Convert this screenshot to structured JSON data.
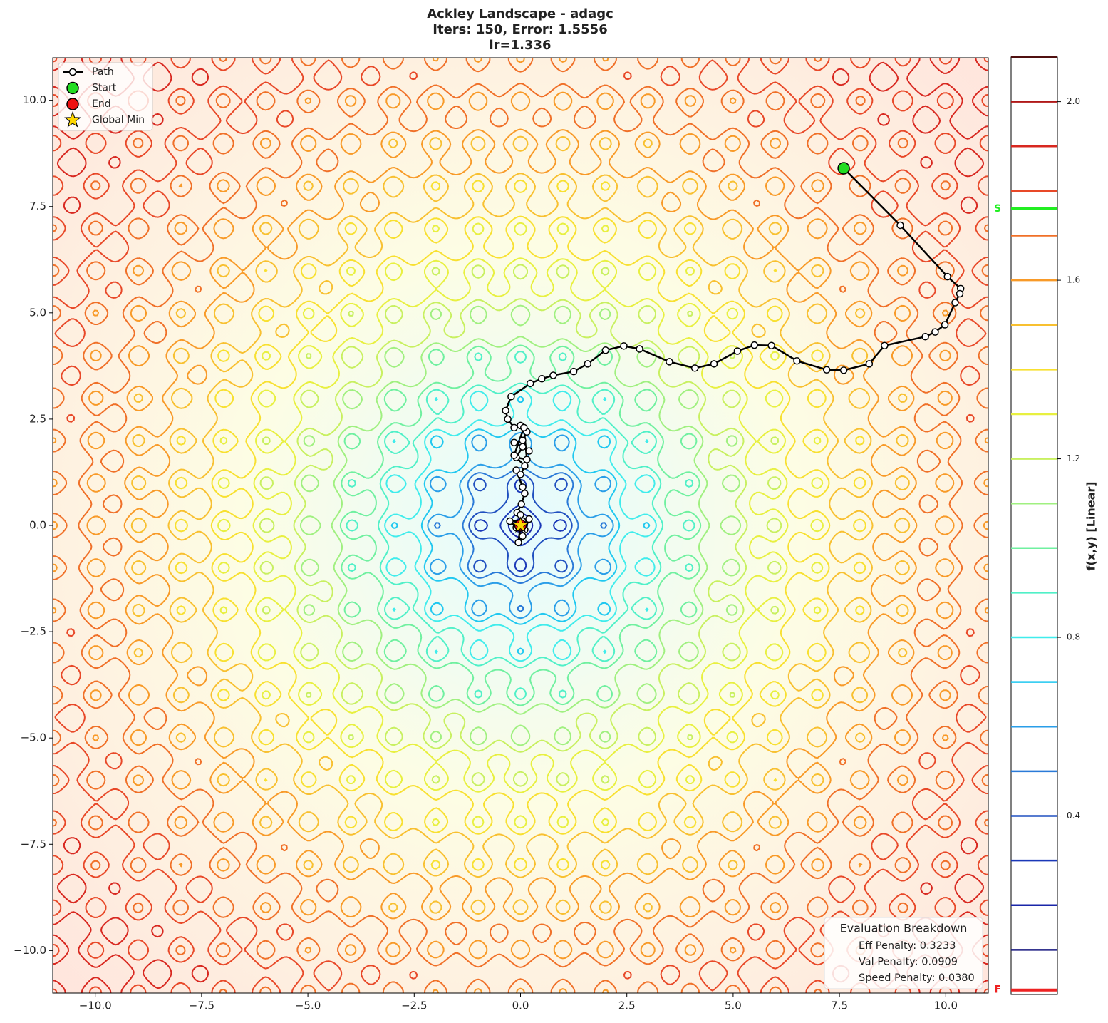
{
  "chart_data": {
    "type": "contour",
    "title": [
      "Ackley Landscape - adagc",
      "Iters: 150, Error: 1.5556",
      "lr=1.336"
    ],
    "xlim": [
      -11,
      11
    ],
    "ylim": [
      -11,
      11
    ],
    "xticks": [
      {
        "value": -10,
        "label": "−10.0"
      },
      {
        "value": -7.5,
        "label": "−7.5"
      },
      {
        "value": -5,
        "label": "−5.0"
      },
      {
        "value": -2.5,
        "label": "−2.5"
      },
      {
        "value": 0,
        "label": "0.0"
      },
      {
        "value": 2.5,
        "label": "2.5"
      },
      {
        "value": 5,
        "label": "5.0"
      },
      {
        "value": 7.5,
        "label": "7.5"
      },
      {
        "value": 10,
        "label": "10.0"
      }
    ],
    "yticks": [
      {
        "value": -10,
        "label": "−10.0"
      },
      {
        "value": -7.5,
        "label": "−7.5"
      },
      {
        "value": -5,
        "label": "−5.0"
      },
      {
        "value": -2.5,
        "label": "−2.5"
      },
      {
        "value": 0,
        "label": "0.0"
      },
      {
        "value": 2.5,
        "label": "2.5"
      },
      {
        "value": 5,
        "label": "5.0"
      },
      {
        "value": 7.5,
        "label": "7.5"
      },
      {
        "value": 10,
        "label": "10.0"
      }
    ],
    "legend": "upper left",
    "path": {
      "name": "Path",
      "color": "#000000",
      "x": [
        7.6,
        8.93,
        10.04,
        10.35,
        10.33,
        10.22,
        9.98,
        9.75,
        9.52,
        8.56,
        8.2,
        7.6,
        7.2,
        6.5,
        5.9,
        5.5,
        5.1,
        4.55,
        4.1,
        3.5,
        2.8,
        2.43,
        2.0,
        1.58,
        1.25,
        0.77,
        0.5,
        0.23,
        -0.22,
        -0.35,
        -0.3,
        -0.15,
        0.0,
        0.15,
        0.05,
        -0.15,
        0.2,
        0.05,
        -0.1,
        0.15,
        0.08,
        -0.15,
        0.1,
        0.0,
        -0.1,
        0.05,
        0.1,
        0.02,
        -0.08,
        0.0,
        0.05,
        -0.25,
        -0.1,
        0.1,
        0.2,
        0.05,
        -0.05,
        0.0,
        0.0
      ],
      "y": [
        8.4,
        7.06,
        5.85,
        5.57,
        5.45,
        5.24,
        4.72,
        4.55,
        4.44,
        4.23,
        3.8,
        3.65,
        3.66,
        3.87,
        4.23,
        4.24,
        4.1,
        3.8,
        3.7,
        3.85,
        4.15,
        4.22,
        4.12,
        3.8,
        3.62,
        3.53,
        3.45,
        3.34,
        3.03,
        2.7,
        2.5,
        2.3,
        2.35,
        2.2,
        2.0,
        1.95,
        1.75,
        1.85,
        1.6,
        1.55,
        2.3,
        1.65,
        1.4,
        1.2,
        1.3,
        0.9,
        0.75,
        0.5,
        0.3,
        0.25,
        0.1,
        0.1,
        -0.05,
        -0.1,
        0.15,
        -0.25,
        -0.4,
        0.0,
        0.0
      ]
    },
    "start": {
      "name": "Start",
      "x": 7.6,
      "y": 8.4,
      "color": "#22dd22"
    },
    "end": {
      "name": "End",
      "x": 0.0,
      "y": 0.0,
      "color": "#ee1111"
    },
    "global_min": {
      "name": "Global Min",
      "x": 0,
      "y": 0,
      "color": "#ffd700"
    },
    "colorbar": {
      "label": "f(x,y) [Linear]",
      "lim": [
        0,
        2.1
      ],
      "ticks": [
        0.4,
        0.8,
        1.2,
        1.6,
        {
          "value": 2,
          "label": "2.0"
        }
      ],
      "levels": [
        0.1,
        0.2,
        0.3,
        0.4,
        0.5,
        0.6,
        0.7,
        0.8,
        0.9,
        1.0,
        1.1,
        1.2,
        1.3,
        1.4,
        1.5,
        1.6,
        1.7,
        1.8,
        1.9,
        2.0,
        2.1
      ],
      "colors": [
        "#1a1a80",
        "#1a26a8",
        "#1a38b8",
        "#2050c0",
        "#2a7ad8",
        "#2a9ee8",
        "#20c8f0",
        "#40ecec",
        "#50f0c8",
        "#70f0a0",
        "#a0f080",
        "#c8f060",
        "#e8f040",
        "#f8e030",
        "#f8c030",
        "#f89a28",
        "#f07028",
        "#e84828",
        "#d82820",
        "#b01818",
        "#501010"
      ],
      "markers": [
        {
          "label": "S",
          "value": 1.76,
          "color": "#22ee22"
        },
        {
          "label": "F",
          "value": 0.01,
          "color": "#ee2222"
        }
      ]
    },
    "evaluation": {
      "title": "Evaluation Breakdown",
      "lines": [
        "Eff Penalty: 0.3233",
        "Val Penalty: 0.0909",
        "Speed Penalty: 0.0380"
      ]
    }
  }
}
